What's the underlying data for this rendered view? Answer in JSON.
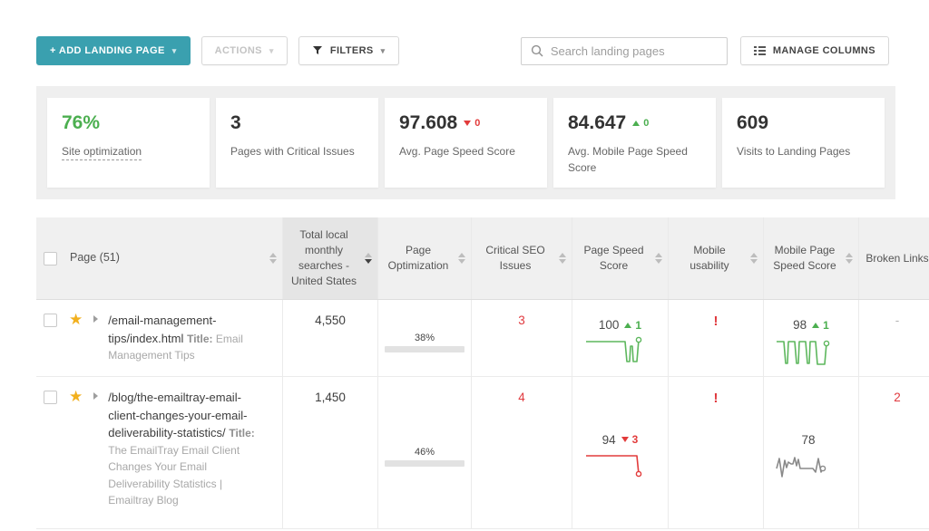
{
  "colors": {
    "accent_teal": "#3aa0af",
    "positive_green": "#4caf50",
    "negative_red": "#e23b3b",
    "star_gold": "#f2b01e"
  },
  "toolbar": {
    "add_button": "+ ADD LANDING PAGE",
    "actions_button": "ACTIONS",
    "filters_button": "FILTERS",
    "search_placeholder": "Search landing pages",
    "manage_columns_button": "MANAGE COLUMNS"
  },
  "stats": [
    {
      "value": "76%",
      "label": "Site optimization"
    },
    {
      "value": "3",
      "label": "Pages with Critical Issues"
    },
    {
      "value": "97.608",
      "label": "Avg. Page Speed Score",
      "delta": "0",
      "trend": "down"
    },
    {
      "value": "84.647",
      "label": "Avg. Mobile Page Speed Score",
      "delta": "0",
      "trend": "up"
    },
    {
      "value": "609",
      "label": "Visits to Landing Pages"
    }
  ],
  "table": {
    "columns": [
      {
        "label": "Page (51)",
        "sortable": true
      },
      {
        "label": "Total local monthly searches - United States",
        "sortable": true,
        "sorted": "desc"
      },
      {
        "label": "Page Optimization",
        "sortable": true
      },
      {
        "label": "Critical SEO Issues",
        "sortable": true
      },
      {
        "label": "Page Speed Score",
        "sortable": true
      },
      {
        "label": "Mobile usability",
        "sortable": true
      },
      {
        "label": "Mobile Page Speed Score",
        "sortable": true
      },
      {
        "label": "Broken Links",
        "sortable": false
      }
    ],
    "rows": [
      {
        "path": "/email-management-tips/index.html",
        "title_label": "Title:",
        "title": "Email Management Tips",
        "searches": "4,550",
        "optimization_label": "38%",
        "optimization_value": 38,
        "critical_issues": "3",
        "page_speed": {
          "score": "100",
          "delta": "1",
          "trend": "up"
        },
        "mobile_usability": "!",
        "mobile_speed": {
          "score": "98",
          "delta": "1",
          "trend": "up"
        },
        "broken_links": "-"
      },
      {
        "path": "/blog/the-emailtray-email-client-changes-your-email-deliverability-statistics/",
        "title_label": "Title:",
        "title": "The EmailTray Email Client Changes Your Email Deliverability Statistics | Emailtray Blog",
        "searches": "1,450",
        "optimization_label": "46%",
        "optimization_value": 46,
        "critical_issues": "4",
        "page_speed": {
          "score": "94",
          "delta": "3",
          "trend": "down"
        },
        "mobile_usability": "!",
        "mobile_speed": {
          "score": "78"
        },
        "broken_links": "2"
      }
    ]
  },
  "sparklines": {
    "row0_page_speed": {
      "color": "#5db75d",
      "points": [
        [
          2,
          9
        ],
        [
          45,
          9
        ],
        [
          47,
          31
        ],
        [
          50,
          31
        ],
        [
          51,
          14
        ],
        [
          53,
          14
        ],
        [
          54,
          31
        ],
        [
          58,
          31
        ],
        [
          60,
          7
        ]
      ]
    },
    "row0_mobile_speed": {
      "color": "#5db75d",
      "points": [
        [
          2,
          9
        ],
        [
          10,
          9
        ],
        [
          12,
          33
        ],
        [
          14,
          33
        ],
        [
          15,
          9
        ],
        [
          22,
          9
        ],
        [
          24,
          33
        ],
        [
          26,
          33
        ],
        [
          27,
          9
        ],
        [
          34,
          9
        ],
        [
          36,
          33
        ],
        [
          38,
          33
        ],
        [
          39,
          9
        ],
        [
          45,
          9
        ],
        [
          47,
          34
        ],
        [
          55,
          34
        ],
        [
          57,
          11
        ]
      ]
    },
    "row1_page_speed": {
      "color": "#e23b3b",
      "points": [
        [
          2,
          8
        ],
        [
          58,
          8
        ],
        [
          60,
          28
        ]
      ]
    },
    "row1_mobile_speed": {
      "color": "#8a8a8a",
      "points": [
        [
          2,
          22
        ],
        [
          5,
          11
        ],
        [
          8,
          31
        ],
        [
          11,
          13
        ],
        [
          13,
          21
        ],
        [
          15,
          15
        ],
        [
          18,
          17
        ],
        [
          20,
          17
        ],
        [
          22,
          10
        ],
        [
          24,
          19
        ],
        [
          26,
          12
        ],
        [
          28,
          22
        ],
        [
          42,
          22
        ],
        [
          45,
          26
        ],
        [
          48,
          11
        ],
        [
          51,
          26
        ],
        [
          53,
          22
        ]
      ]
    }
  }
}
